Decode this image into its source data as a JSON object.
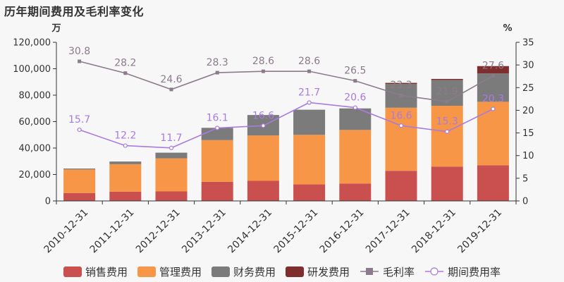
{
  "title": "历年期间费用及毛利率变化",
  "chart_data": {
    "type": "bar",
    "stacked": true,
    "categories": [
      "2010-12-31",
      "2011-12-31",
      "2012-12-31",
      "2013-12-31",
      "2014-12-31",
      "2015-12-31",
      "2016-12-31",
      "2017-12-31",
      "2018-12-31",
      "2019-12-31"
    ],
    "y_left": {
      "unit": "万",
      "range": [
        0,
        120000
      ],
      "ticks": [
        0,
        20000,
        40000,
        60000,
        80000,
        100000,
        120000
      ],
      "tick_labels": [
        "0",
        "20,000",
        "40,000",
        "60,000",
        "80,000",
        "100,000",
        "120,000"
      ]
    },
    "y_right": {
      "unit": "%",
      "range": [
        0,
        35
      ],
      "ticks": [
        0,
        5,
        10,
        15,
        20,
        25,
        30,
        35
      ]
    },
    "bar_series": [
      {
        "name": "销售费用",
        "color": "#c9504f",
        "values": [
          6000,
          7000,
          7200,
          14500,
          15200,
          12500,
          13200,
          22800,
          26000,
          27000
        ]
      },
      {
        "name": "管理费用",
        "color": "#f79646",
        "values": [
          17800,
          20800,
          25000,
          31500,
          34300,
          37500,
          40500,
          47700,
          46000,
          48000
        ]
      },
      {
        "name": "财务费用",
        "color": "#7b7b7b",
        "values": [
          700,
          2000,
          4300,
          9300,
          15500,
          19000,
          16300,
          18000,
          19500,
          21500
        ]
      },
      {
        "name": "研发费用",
        "color": "#7f2d2d",
        "values": [
          0,
          0,
          0,
          0,
          0,
          0,
          0,
          800,
          800,
          5500
        ]
      }
    ],
    "line_series": [
      {
        "name": "毛利率",
        "color": "#8b7b8b",
        "marker": "square",
        "axis": "right",
        "values": [
          30.8,
          28.2,
          24.6,
          28.3,
          28.6,
          28.6,
          26.5,
          23.3,
          21.9,
          27.6
        ],
        "labels": [
          "30.8",
          "28.2",
          "24.6",
          "28.3",
          "28.6",
          "28.6",
          "26.5",
          "23.3",
          "21.9",
          "27.6"
        ]
      },
      {
        "name": "期间费用率",
        "color": "#a97be0",
        "marker": "circle",
        "axis": "right",
        "values": [
          15.7,
          12.2,
          11.7,
          16.1,
          16.6,
          21.7,
          20.6,
          16.6,
          15.3,
          20.3
        ],
        "labels": [
          "15.7",
          "12.2",
          "11.7",
          "16.1",
          "16.6",
          "21.7",
          "20.6",
          "16.6",
          "15.3",
          "20.3"
        ]
      }
    ],
    "legend_position": "bottom"
  }
}
